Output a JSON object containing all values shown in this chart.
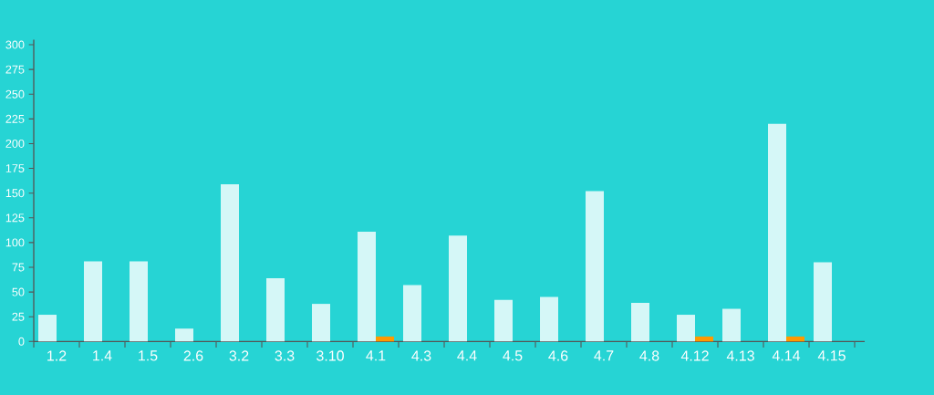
{
  "chart_data": {
    "type": "bar",
    "categories": [
      "1.2",
      "1.4",
      "1.5",
      "2.6",
      "3.2",
      "3.3",
      "3.10",
      "4.1",
      "4.3",
      "4.4",
      "4.5",
      "4.6",
      "4.7",
      "4.8",
      "4.12",
      "4.13",
      "4.14",
      "4.15"
    ],
    "series": [
      {
        "color": "#d5f7f7",
        "values": [
          27,
          81,
          81,
          13,
          159,
          64,
          38,
          111,
          57,
          107,
          42,
          45,
          152,
          39,
          27,
          33,
          220,
          80
        ]
      },
      {
        "color": "#ff9900",
        "values": [
          null,
          null,
          null,
          null,
          null,
          null,
          null,
          5,
          null,
          null,
          null,
          null,
          null,
          null,
          5,
          null,
          5,
          null
        ]
      }
    ],
    "ylim": [
      0,
      305
    ],
    "yticks": [
      0,
      25,
      50,
      75,
      100,
      125,
      150,
      175,
      200,
      225,
      250,
      275,
      300
    ]
  }
}
